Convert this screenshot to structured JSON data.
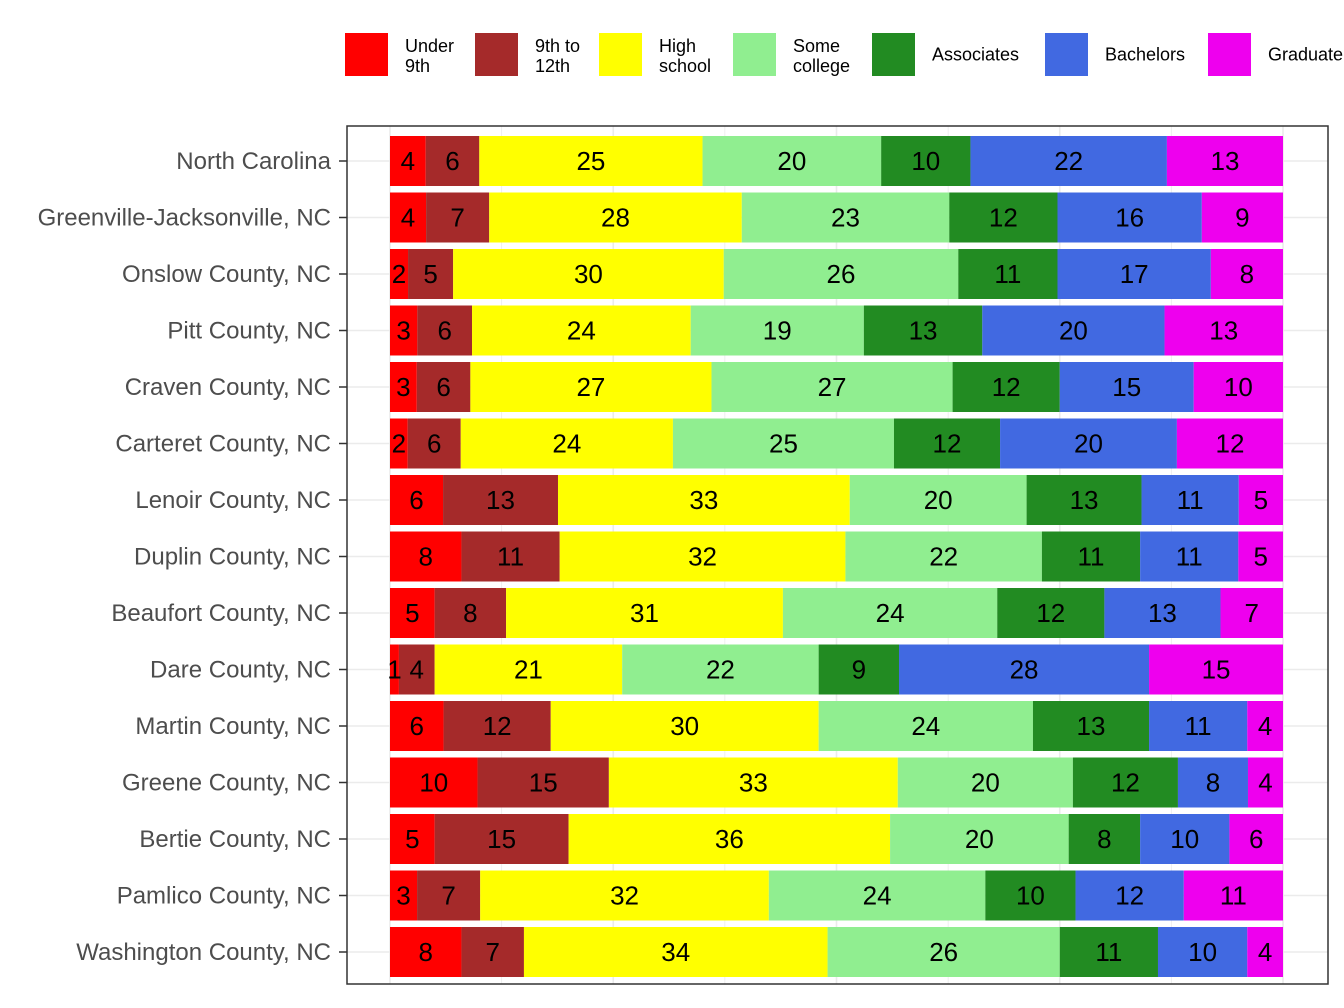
{
  "chart_data": {
    "type": "bar",
    "orientation": "horizontal",
    "stacked": "percent",
    "title": "",
    "xlabel": "",
    "ylabel": "",
    "legend_position": "top",
    "grid": true,
    "series": [
      {
        "name": "Under\n9th",
        "color": "#ff0000",
        "values": [
          4,
          4,
          2,
          3,
          3,
          2,
          6,
          8,
          5,
          1,
          6,
          10,
          5,
          3,
          8
        ]
      },
      {
        "name": "9th to\n12th",
        "color": "#a52a2a",
        "values": [
          6,
          7,
          5,
          6,
          6,
          6,
          13,
          11,
          8,
          4,
          12,
          15,
          15,
          7,
          7
        ]
      },
      {
        "name": "High\nschool",
        "color": "#ffff00",
        "values": [
          25,
          28,
          30,
          24,
          27,
          24,
          33,
          32,
          31,
          21,
          30,
          33,
          36,
          32,
          34
        ]
      },
      {
        "name": "Some\ncollege",
        "color": "#90ee90",
        "values": [
          20,
          23,
          26,
          19,
          27,
          25,
          20,
          22,
          24,
          22,
          24,
          20,
          20,
          24,
          26
        ]
      },
      {
        "name": "Associates",
        "color": "#228b22",
        "values": [
          10,
          12,
          11,
          13,
          12,
          12,
          13,
          11,
          12,
          9,
          13,
          12,
          8,
          10,
          11
        ]
      },
      {
        "name": "Bachelors",
        "color": "#4169e1",
        "values": [
          22,
          16,
          17,
          20,
          15,
          20,
          11,
          11,
          13,
          28,
          11,
          8,
          10,
          12,
          10
        ]
      },
      {
        "name": "Graduate",
        "color": "#ee00ee",
        "values": [
          13,
          9,
          8,
          13,
          10,
          12,
          5,
          5,
          7,
          15,
          4,
          4,
          6,
          11,
          4
        ]
      }
    ],
    "categories": [
      "North Carolina",
      "Greenville-Jacksonville, NC",
      "Onslow County, NC",
      "Pitt County, NC",
      "Craven County, NC",
      "Carteret County, NC",
      "Lenoir County, NC",
      "Duplin County, NC",
      "Beaufort County, NC",
      "Dare County, NC",
      "Martin County, NC",
      "Greene County, NC",
      "Bertie County, NC",
      "Pamlico County, NC",
      "Washington County, NC"
    ]
  }
}
